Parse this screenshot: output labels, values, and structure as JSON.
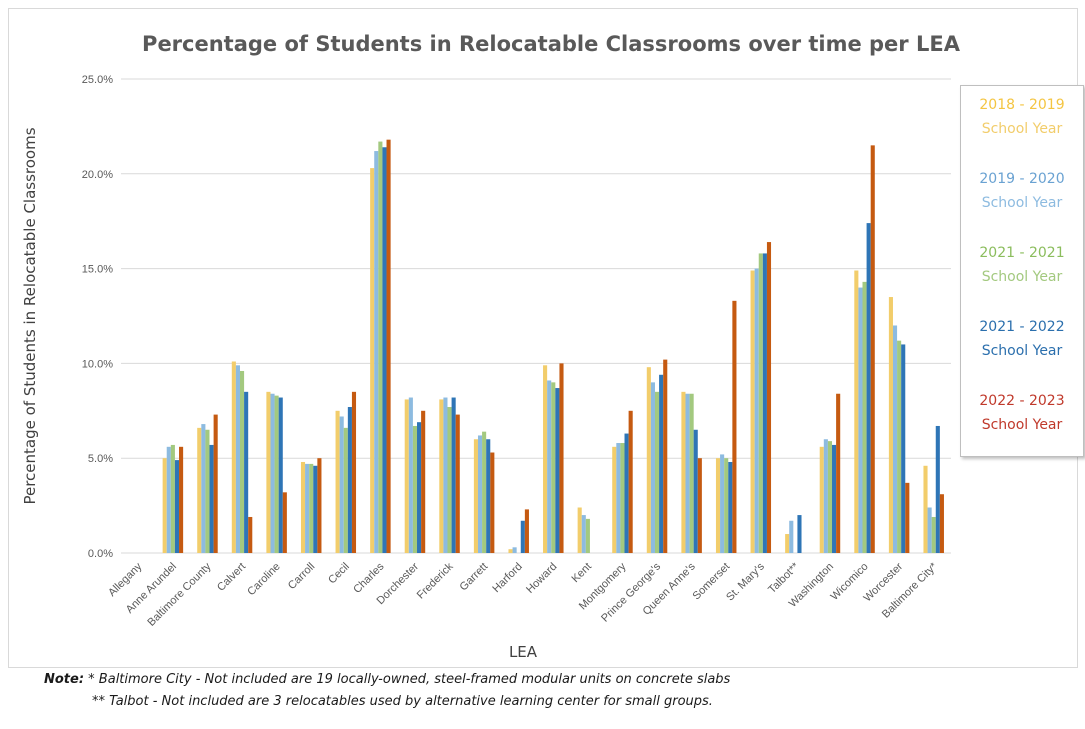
{
  "chart_data": {
    "type": "bar",
    "title": "Percentage of Students in Relocatable Classrooms over time per LEA",
    "xlabel": "LEA",
    "ylabel": "Percentage of Students in Relocatable Classrooms",
    "ylim": [
      0,
      25
    ],
    "y_ticks": [
      "0.0%",
      "5.0%",
      "10.0%",
      "15.0%",
      "20.0%",
      "25.0%"
    ],
    "grid": true,
    "legend_position": "right",
    "categories": [
      "Allegany",
      "Anne Arundel",
      "Baltimore County",
      "Calvert",
      "Caroline",
      "Carroll",
      "Cecil",
      "Charles",
      "Dorchester",
      "Frederick",
      "Garrett",
      "Harford",
      "Howard",
      "Kent",
      "Montgomery",
      "Prince George's",
      "Queen Anne's",
      "Somerset",
      "St. Mary's",
      "Talbot**",
      "Washington",
      "Wicomico",
      "Worcester",
      "Baltimore City*"
    ],
    "series_segments": [
      {
        "line1": "2018 - 2019",
        "line2": "School Year",
        "color1": "#f4c542",
        "color2": "#f2cd6b"
      },
      {
        "line1": "2019 - 2020",
        "line2": "School Year",
        "color1": "#6aa2d2",
        "color2": "#8dbbe0"
      },
      {
        "line1": "2021 - 2021",
        "line2": "School Year",
        "color1": "#8bbd5d",
        "color2": "#a3c97f"
      },
      {
        "line1": "2021 - 2022",
        "line2": "School Year",
        "color1": "#2b6fad",
        "color2": "#2b6fad"
      },
      {
        "line1": "2022 - 2023",
        "line2": "School Year",
        "color1": "#c0392b",
        "color2": "#c0392b"
      }
    ],
    "bar_colors": [
      "#f2cd6b",
      "#8dbbe0",
      "#a3c97f",
      "#2e75b6",
      "#c55a11"
    ],
    "series": [
      {
        "values": [
          0,
          5.0,
          6.6,
          10.1,
          8.5,
          4.8,
          7.5,
          20.3,
          8.1,
          8.1,
          6.0,
          0.2,
          9.9,
          2.4,
          5.6,
          9.8,
          8.5,
          5.0,
          14.9,
          1.0,
          5.6,
          14.9,
          13.5,
          4.6
        ]
      },
      {
        "values": [
          0,
          5.6,
          6.8,
          9.9,
          8.4,
          4.7,
          7.2,
          21.2,
          8.2,
          8.2,
          6.2,
          0.3,
          9.1,
          2.0,
          5.8,
          9.0,
          8.4,
          5.2,
          15.0,
          1.7,
          6.0,
          14.0,
          12.0,
          2.4
        ]
      },
      {
        "values": [
          0,
          5.7,
          6.5,
          9.6,
          8.3,
          4.7,
          6.6,
          21.7,
          6.7,
          7.7,
          6.4,
          0,
          9.0,
          1.8,
          5.8,
          8.5,
          8.4,
          5.0,
          15.8,
          0,
          5.9,
          14.3,
          11.2,
          1.9
        ]
      },
      {
        "values": [
          0,
          4.9,
          5.7,
          8.5,
          8.2,
          4.6,
          7.7,
          21.4,
          6.9,
          8.2,
          6.0,
          1.7,
          8.7,
          0,
          6.3,
          9.4,
          6.5,
          4.8,
          15.8,
          2.0,
          5.7,
          17.4,
          11.0,
          6.7
        ]
      },
      {
        "values": [
          0,
          5.6,
          7.3,
          1.9,
          3.2,
          5.0,
          8.5,
          21.8,
          7.5,
          7.3,
          5.3,
          2.3,
          10.0,
          0,
          7.5,
          10.2,
          5.0,
          13.3,
          16.4,
          0,
          8.4,
          21.5,
          3.7,
          3.1
        ]
      }
    ]
  },
  "notes": {
    "note1_label": "Note:",
    "note1_text": " * Baltimore City - Not included are 19 locally-owned, steel-framed modular units on concrete slabs",
    "note2_text": "** Talbot - Not included are 3 relocatables used by alternative learning center for small groups."
  }
}
